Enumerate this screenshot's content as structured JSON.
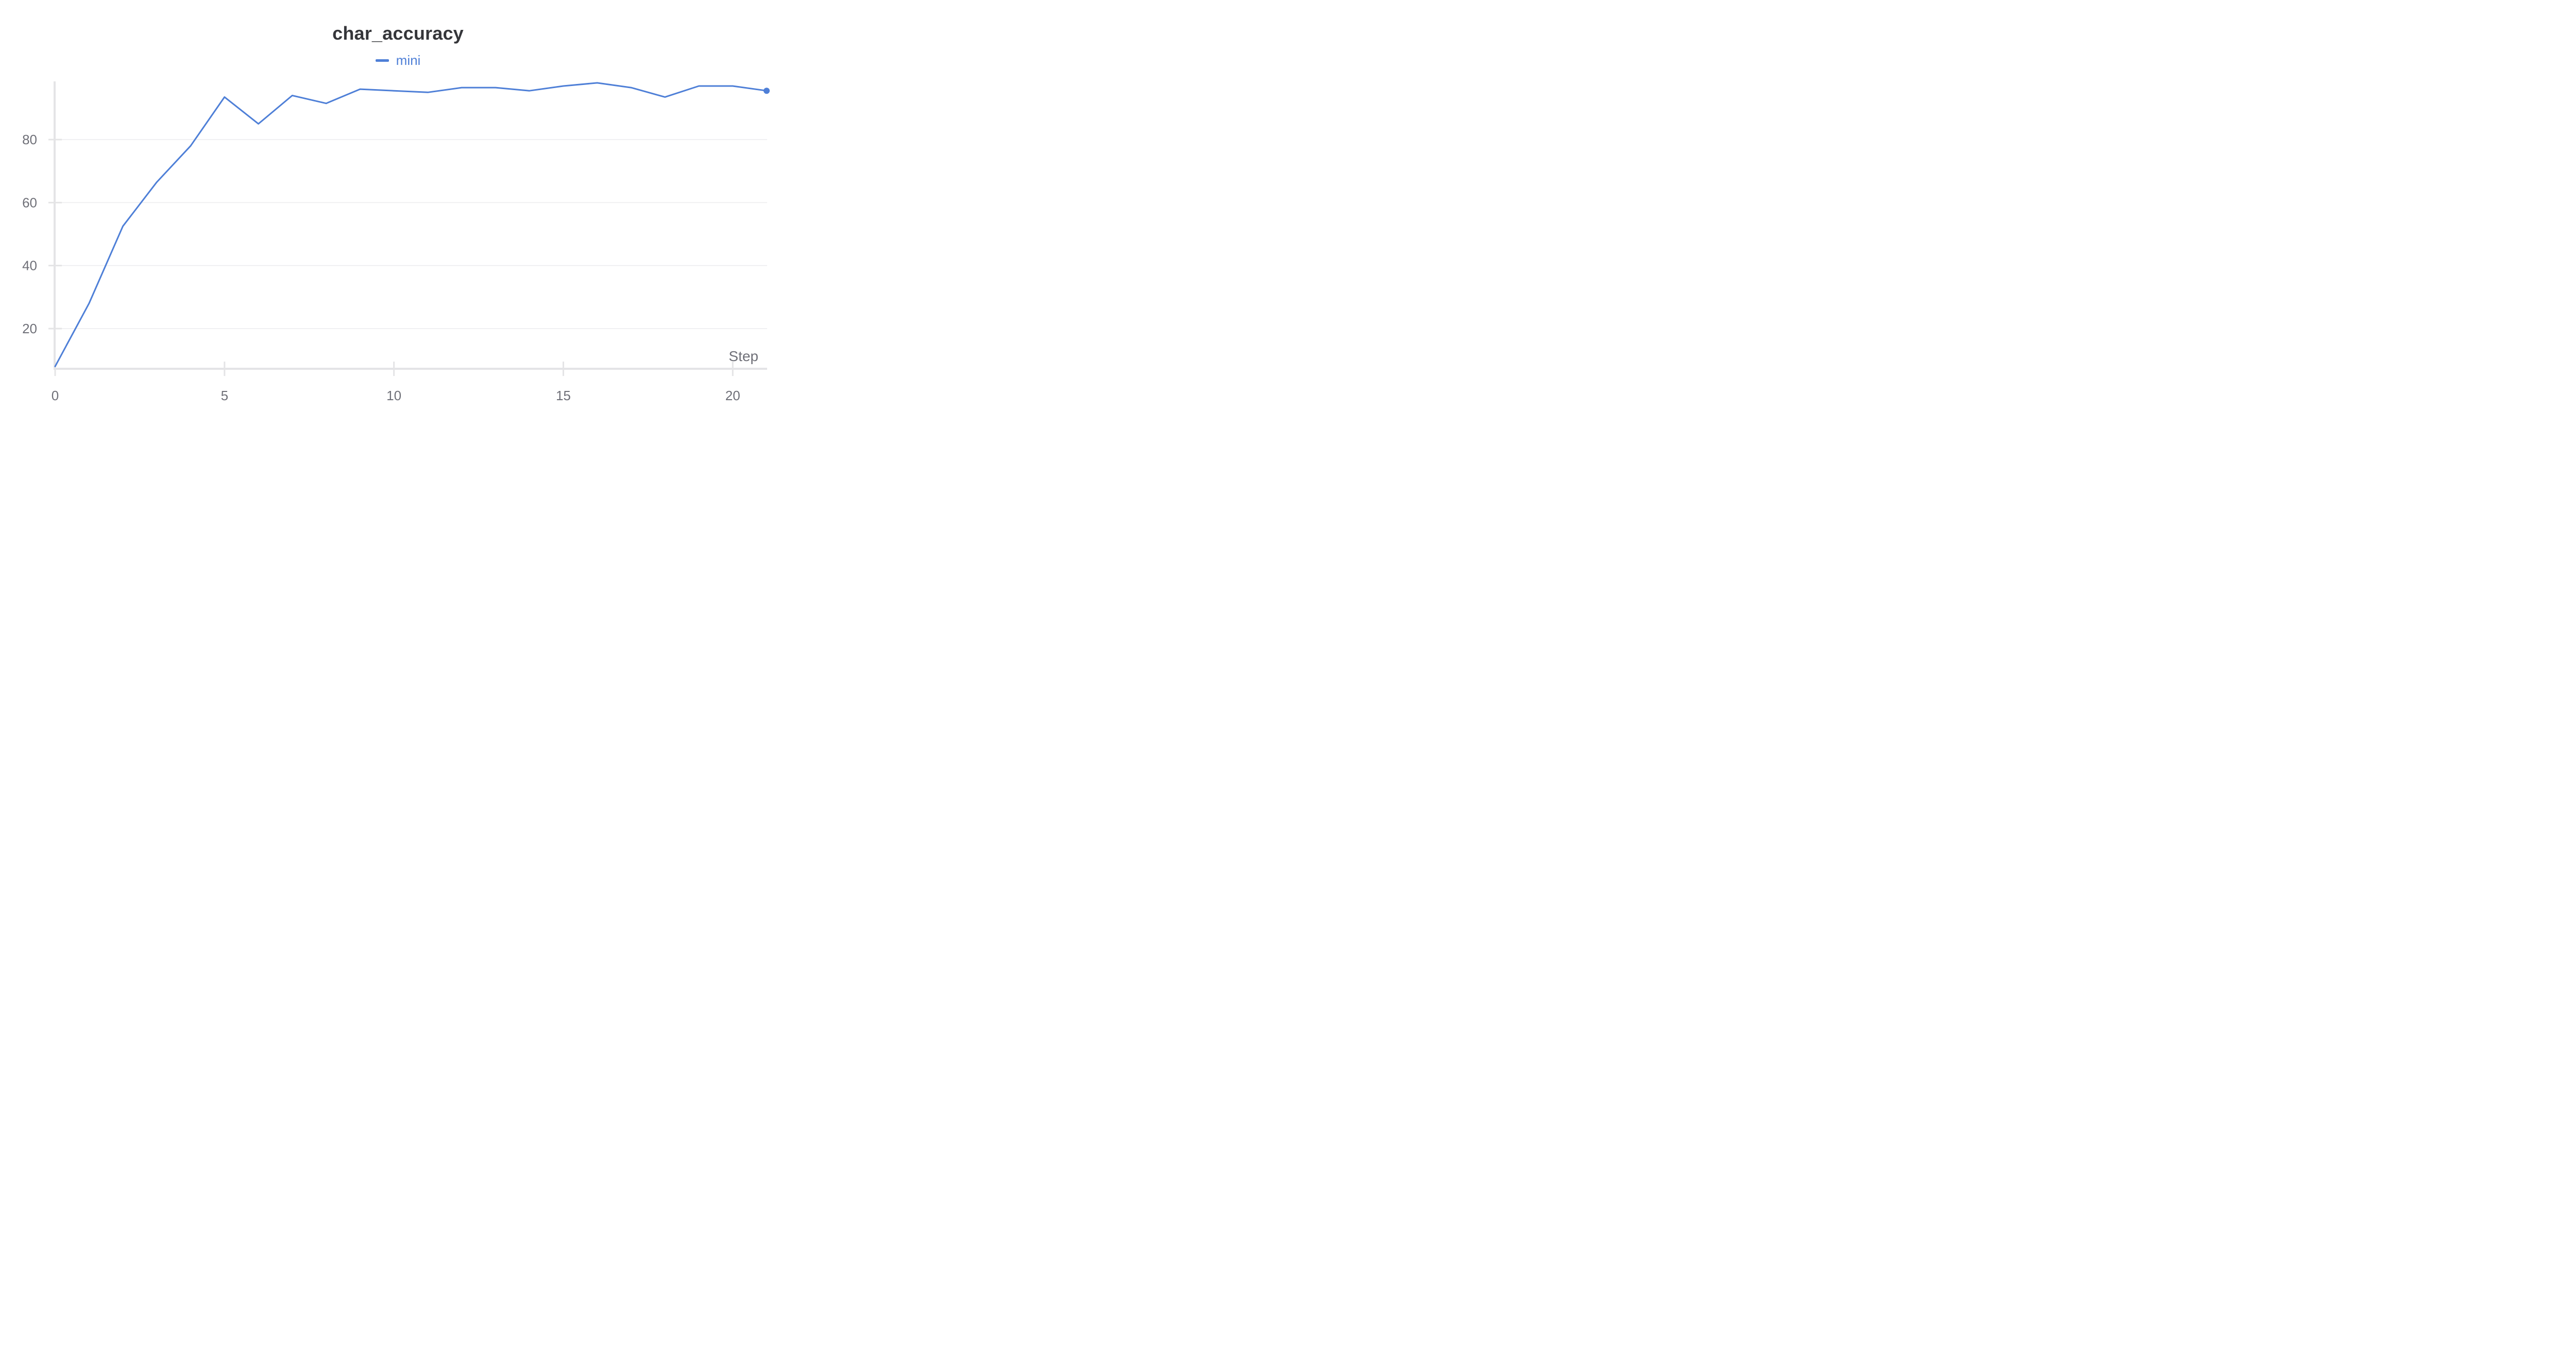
{
  "chart_data": {
    "type": "line",
    "title": "char_accuracy",
    "xlabel": "Step",
    "ylabel": "",
    "legend_position": "top-center",
    "grid": true,
    "xlim": [
      0,
      21
    ],
    "ylim": [
      7,
      97
    ],
    "x_ticks": [
      0,
      5,
      10,
      15,
      20
    ],
    "y_ticks": [
      20,
      40,
      60,
      80
    ],
    "series": [
      {
        "name": "mini",
        "color": "#4e7fd7",
        "x": [
          0,
          1,
          2,
          3,
          4,
          5,
          6,
          7,
          8,
          9,
          10,
          11,
          12,
          13,
          14,
          15,
          16,
          17,
          18,
          19,
          20,
          21
        ],
        "values": [
          8,
          28,
          52.5,
          66.5,
          78,
          93.5,
          85,
          94,
          91.5,
          96,
          95.5,
          95,
          96.5,
          96.5,
          95.5,
          97,
          98,
          96.5,
          93.5,
          97,
          97,
          95.5
        ]
      }
    ]
  }
}
